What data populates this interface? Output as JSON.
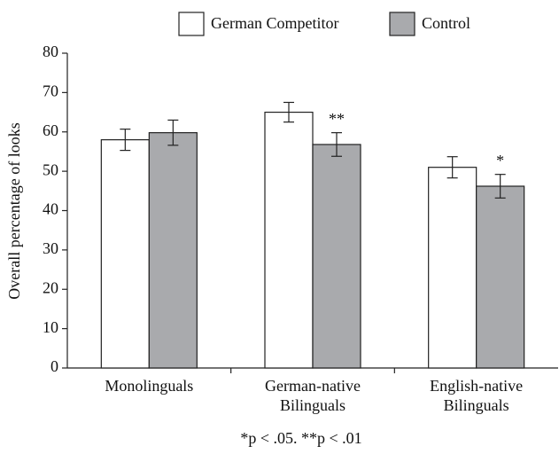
{
  "chart_data": {
    "type": "bar",
    "y_label": "Overall percentage of looks",
    "categories": [
      [
        "Monolinguals"
      ],
      [
        "German-native",
        "Bilinguals"
      ],
      [
        "English-native",
        "Bilinguals"
      ]
    ],
    "series": [
      {
        "name": "German Competitor",
        "color": "#ffffff",
        "values": [
          58,
          65,
          51
        ],
        "errors": [
          2.7,
          2.5,
          2.7
        ]
      },
      {
        "name": "Control",
        "color": "#a9aaad",
        "values": [
          59.8,
          56.8,
          46.2
        ],
        "errors": [
          3.2,
          3,
          3
        ]
      }
    ],
    "annotations": [
      {
        "text": "**",
        "category": "German-native Bilinguals",
        "series": "Control"
      },
      {
        "text": "*",
        "category": "English-native Bilinguals",
        "series": "Control"
      }
    ],
    "footnote": "*p < .05.  **p < .01",
    "ylim": [
      0,
      80
    ],
    "yticks": [
      0,
      10,
      20,
      30,
      40,
      50,
      60,
      70,
      80
    ],
    "grid": false,
    "legend": "top"
  }
}
